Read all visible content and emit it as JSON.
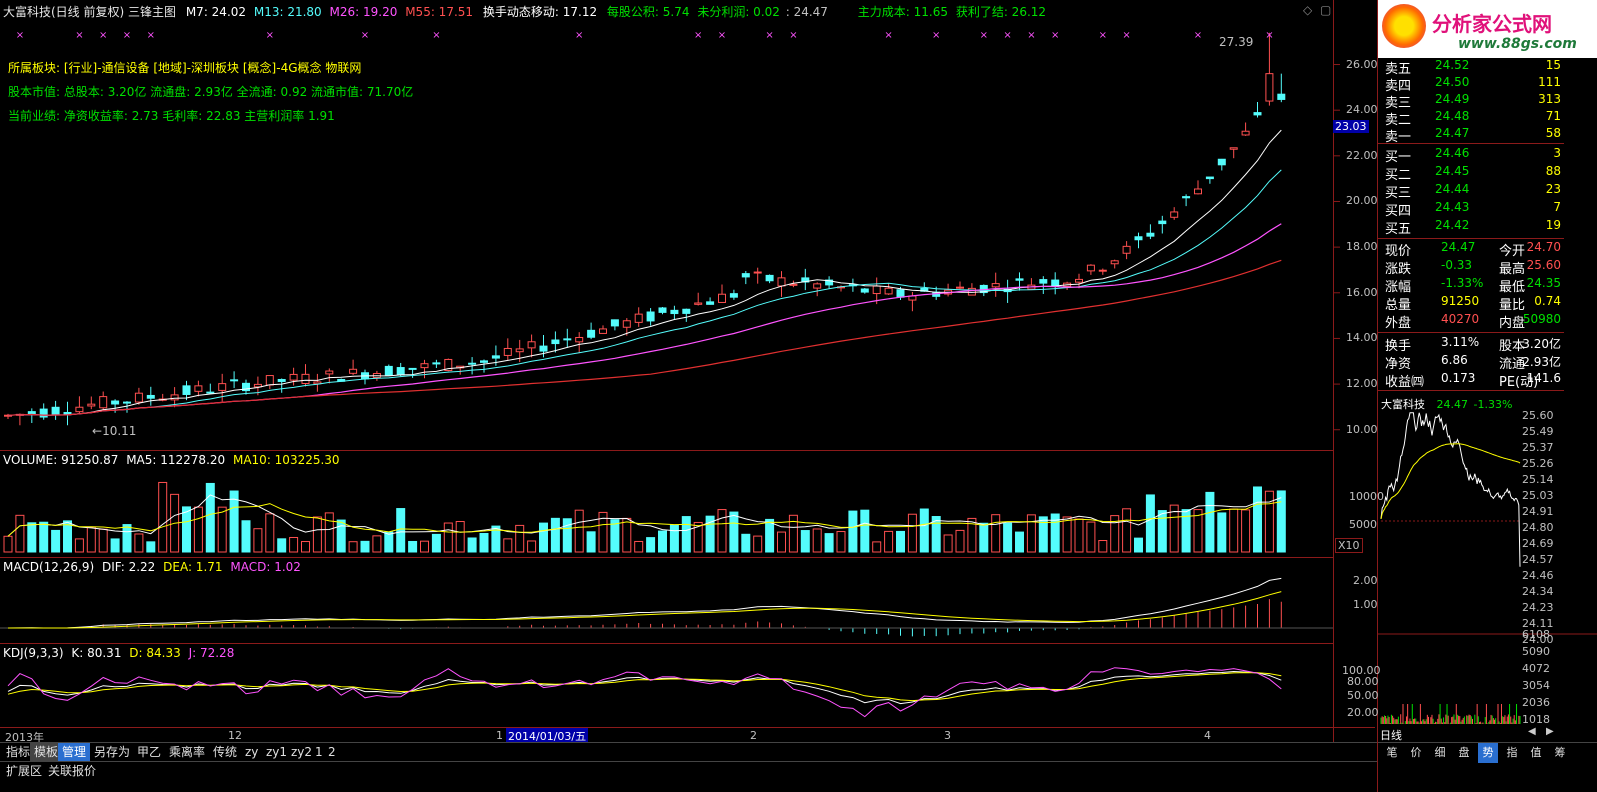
{
  "header": {
    "title": "大富科技(日线 前复权) 三锋主图",
    "m7": "M7: 24.02",
    "m13": "M13: 21.80",
    "m26": "M26: 19.20",
    "m55": "M55: 17.51",
    "turnover_move": "换手动态移动: 17.12",
    "eps_reserve": "每股公积: 5.74",
    "undistributed": "未分利润: 0.02",
    "extra": ": 24.47",
    "cost": "主力成本: 11.65",
    "profit": "获利了结: 26.12"
  },
  "info": {
    "sector": "所属板块: [行业]-通信设备 [地域]-深圳板块 [概念]-4G概念 物联网",
    "capital": "股本市值: 总股本: 3.20亿 流通盘: 2.93亿 全流通: 0.92 流通市值: 71.70亿",
    "performance": "当前业绩: 净资收益率: 2.73 毛利率: 22.83 主营利润率 1.91"
  },
  "price_chart": {
    "high_label": "27.39",
    "low_label": "10.11",
    "current_tag": "23.03",
    "y_ticks": [
      "26.00",
      "24.00",
      "22.00",
      "20.00",
      "18.00",
      "16.00",
      "14.00",
      "12.00",
      "10.00"
    ]
  },
  "volume": {
    "label": "VOLUME: 91250.87",
    "ma5": "MA5: 112278.20",
    "ma10": "MA10: 103225.30",
    "ticks": [
      "10000",
      "5000"
    ],
    "unit": "X10"
  },
  "macd": {
    "label": "MACD(12,26,9)",
    "dif": "DIF: 2.22",
    "dea": "DEA: 1.71",
    "macd": "MACD: 1.02",
    "ticks": [
      "2.00",
      "1.00"
    ]
  },
  "kdj": {
    "label": "KDJ(9,3,3)",
    "k": "K: 80.31",
    "d": "D: 84.33",
    "j": "J: 72.28",
    "ticks": [
      "100.00",
      "80.00",
      "50.00",
      "20.00"
    ]
  },
  "time_axis": {
    "year": "2013年",
    "m12": "12",
    "m1": "1",
    "date": "2014/01/03/五",
    "m2": "2",
    "m3": "3",
    "m4": "4"
  },
  "bottom_tabs": [
    "指标",
    "模板",
    "管理",
    "另存为",
    "甲乙",
    "乘离率",
    "传统",
    "zy",
    "zy1",
    "zy2",
    "1",
    "2"
  ],
  "bottom_row2": [
    "扩展区",
    "关联报价"
  ],
  "right_panel": {
    "logo_text": "分析家公式网",
    "logo_url": "www.88gs.com",
    "asks": [
      {
        "label": "卖五",
        "price": "24.52",
        "vol": "15"
      },
      {
        "label": "卖四",
        "price": "24.50",
        "vol": "111"
      },
      {
        "label": "卖三",
        "price": "24.49",
        "vol": "313"
      },
      {
        "label": "卖二",
        "price": "24.48",
        "vol": "71"
      },
      {
        "label": "卖一",
        "price": "24.47",
        "vol": "58"
      }
    ],
    "bids": [
      {
        "label": "买一",
        "price": "24.46",
        "vol": "3"
      },
      {
        "label": "买二",
        "price": "24.45",
        "vol": "88"
      },
      {
        "label": "买三",
        "price": "24.44",
        "vol": "23"
      },
      {
        "label": "买四",
        "price": "24.43",
        "vol": "7"
      },
      {
        "label": "买五",
        "price": "24.42",
        "vol": "19"
      }
    ],
    "quote": [
      {
        "l1": "现价",
        "v1": "24.47",
        "l2": "今开",
        "v2": "24.70"
      },
      {
        "l1": "涨跌",
        "v1": "-0.33",
        "l2": "最高",
        "v2": "25.60"
      },
      {
        "l1": "涨幅",
        "v1": "-1.33%",
        "l2": "最低",
        "v2": "24.35"
      },
      {
        "l1": "总量",
        "v1": "91250",
        "l2": "量比",
        "v2": "0.74"
      },
      {
        "l1": "外盘",
        "v1": "40270",
        "l2": "内盘",
        "v2": "50980"
      }
    ],
    "fund": [
      {
        "l1": "换手",
        "v1": "3.11%",
        "l2": "股本",
        "v2": "3.20亿"
      },
      {
        "l1": "净资",
        "v1": "6.86",
        "l2": "流通",
        "v2": "2.93亿"
      },
      {
        "l1": "收益㈣",
        "v1": "0.173",
        "l2": "PE(动)",
        "v2": "141.6"
      }
    ],
    "mini": {
      "name": "大富科技",
      "price": "24.47",
      "change": "-1.33%",
      "ticks": [
        "25.60",
        "25.49",
        "25.37",
        "25.26",
        "25.14",
        "25.03",
        "24.91",
        "24.80",
        "24.69",
        "24.57",
        "24.46",
        "24.34",
        "24.23",
        "24.11",
        "24.00"
      ],
      "vol_ticks": [
        "6108",
        "5090",
        "4072",
        "3054",
        "2036",
        "1018"
      ]
    },
    "period": "日线",
    "tabs": [
      "笔",
      "价",
      "细",
      "盘",
      "势",
      "指",
      "值",
      "筹"
    ]
  }
}
